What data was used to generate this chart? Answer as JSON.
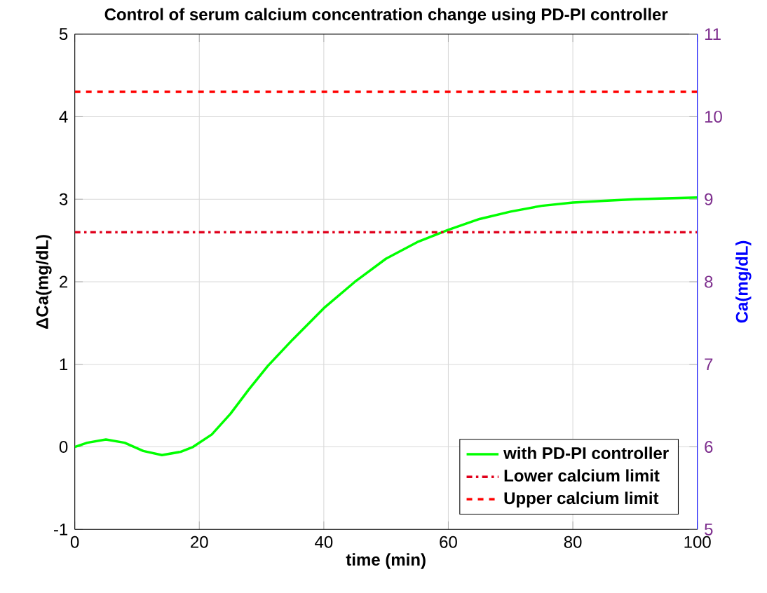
{
  "chart_data": {
    "type": "line",
    "title": "Control of serum calcium concentration change using PD-PI controller",
    "xlabel": "time (min)",
    "ylabel": "ΔCa(mg/dL)",
    "y2label": "Ca(mg/dL)",
    "xlim": [
      0,
      100
    ],
    "xticks": [
      0,
      20,
      40,
      60,
      80,
      100
    ],
    "ylim": [
      -1,
      5
    ],
    "yticks": [
      -1,
      0,
      1,
      2,
      3,
      4,
      5
    ],
    "y2lim": [
      5,
      11
    ],
    "y2ticks": [
      5,
      6,
      7,
      8,
      9,
      10,
      11
    ],
    "grid": true,
    "legend": "bottom right",
    "marker": "none",
    "series": [
      {
        "name": "with PD-PI controller",
        "color": "#00ff00",
        "line_style": "solid",
        "x": [
          0,
          2,
          5,
          8,
          11,
          14,
          17,
          19,
          22,
          25,
          28,
          31,
          35,
          40,
          45,
          50,
          55,
          60,
          65,
          70,
          75,
          80,
          85,
          90,
          95,
          100
        ],
        "values": [
          0,
          0.05,
          0.09,
          0.05,
          -0.05,
          -0.1,
          -0.06,
          0,
          0.15,
          0.4,
          0.7,
          0.98,
          1.3,
          1.68,
          2.0,
          2.28,
          2.48,
          2.63,
          2.76,
          2.85,
          2.92,
          2.96,
          2.98,
          3.0,
          3.01,
          3.02
        ]
      },
      {
        "name": "Lower calcium limit",
        "color": "#e0001b",
        "line_style": "dashdot",
        "x": [
          0,
          100
        ],
        "values": [
          2.6,
          2.6
        ]
      },
      {
        "name": "Upper calcium limit",
        "color": "#ff0000",
        "line_style": "dashed",
        "x": [
          0,
          100
        ],
        "values": [
          4.3,
          4.3
        ]
      }
    ]
  }
}
